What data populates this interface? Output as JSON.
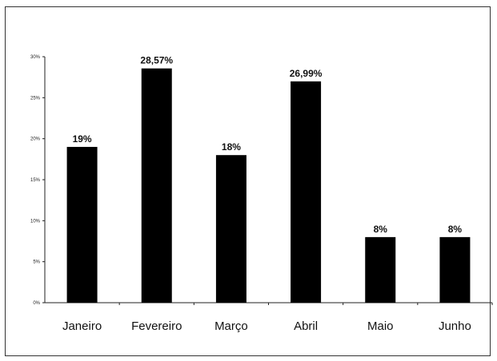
{
  "chart_data": {
    "type": "bar",
    "categories": [
      "Janeiro",
      "Fevereiro",
      "Março",
      "Abril",
      "Maio",
      "Junho"
    ],
    "values": [
      19,
      28.57,
      18,
      26.99,
      8,
      8
    ],
    "data_labels": [
      "19%",
      "28,57%",
      "18%",
      "26,99%",
      "8%",
      "8%"
    ],
    "yticks": [
      0,
      5,
      10,
      15,
      20,
      25,
      30
    ],
    "ytick_labels": [
      "0%",
      "5%",
      "10%",
      "15%",
      "20%",
      "25%",
      "30%"
    ],
    "ylim": [
      0,
      30
    ],
    "title": "",
    "xlabel": "",
    "ylabel": "",
    "grid": false,
    "bar_color": "#000000"
  }
}
